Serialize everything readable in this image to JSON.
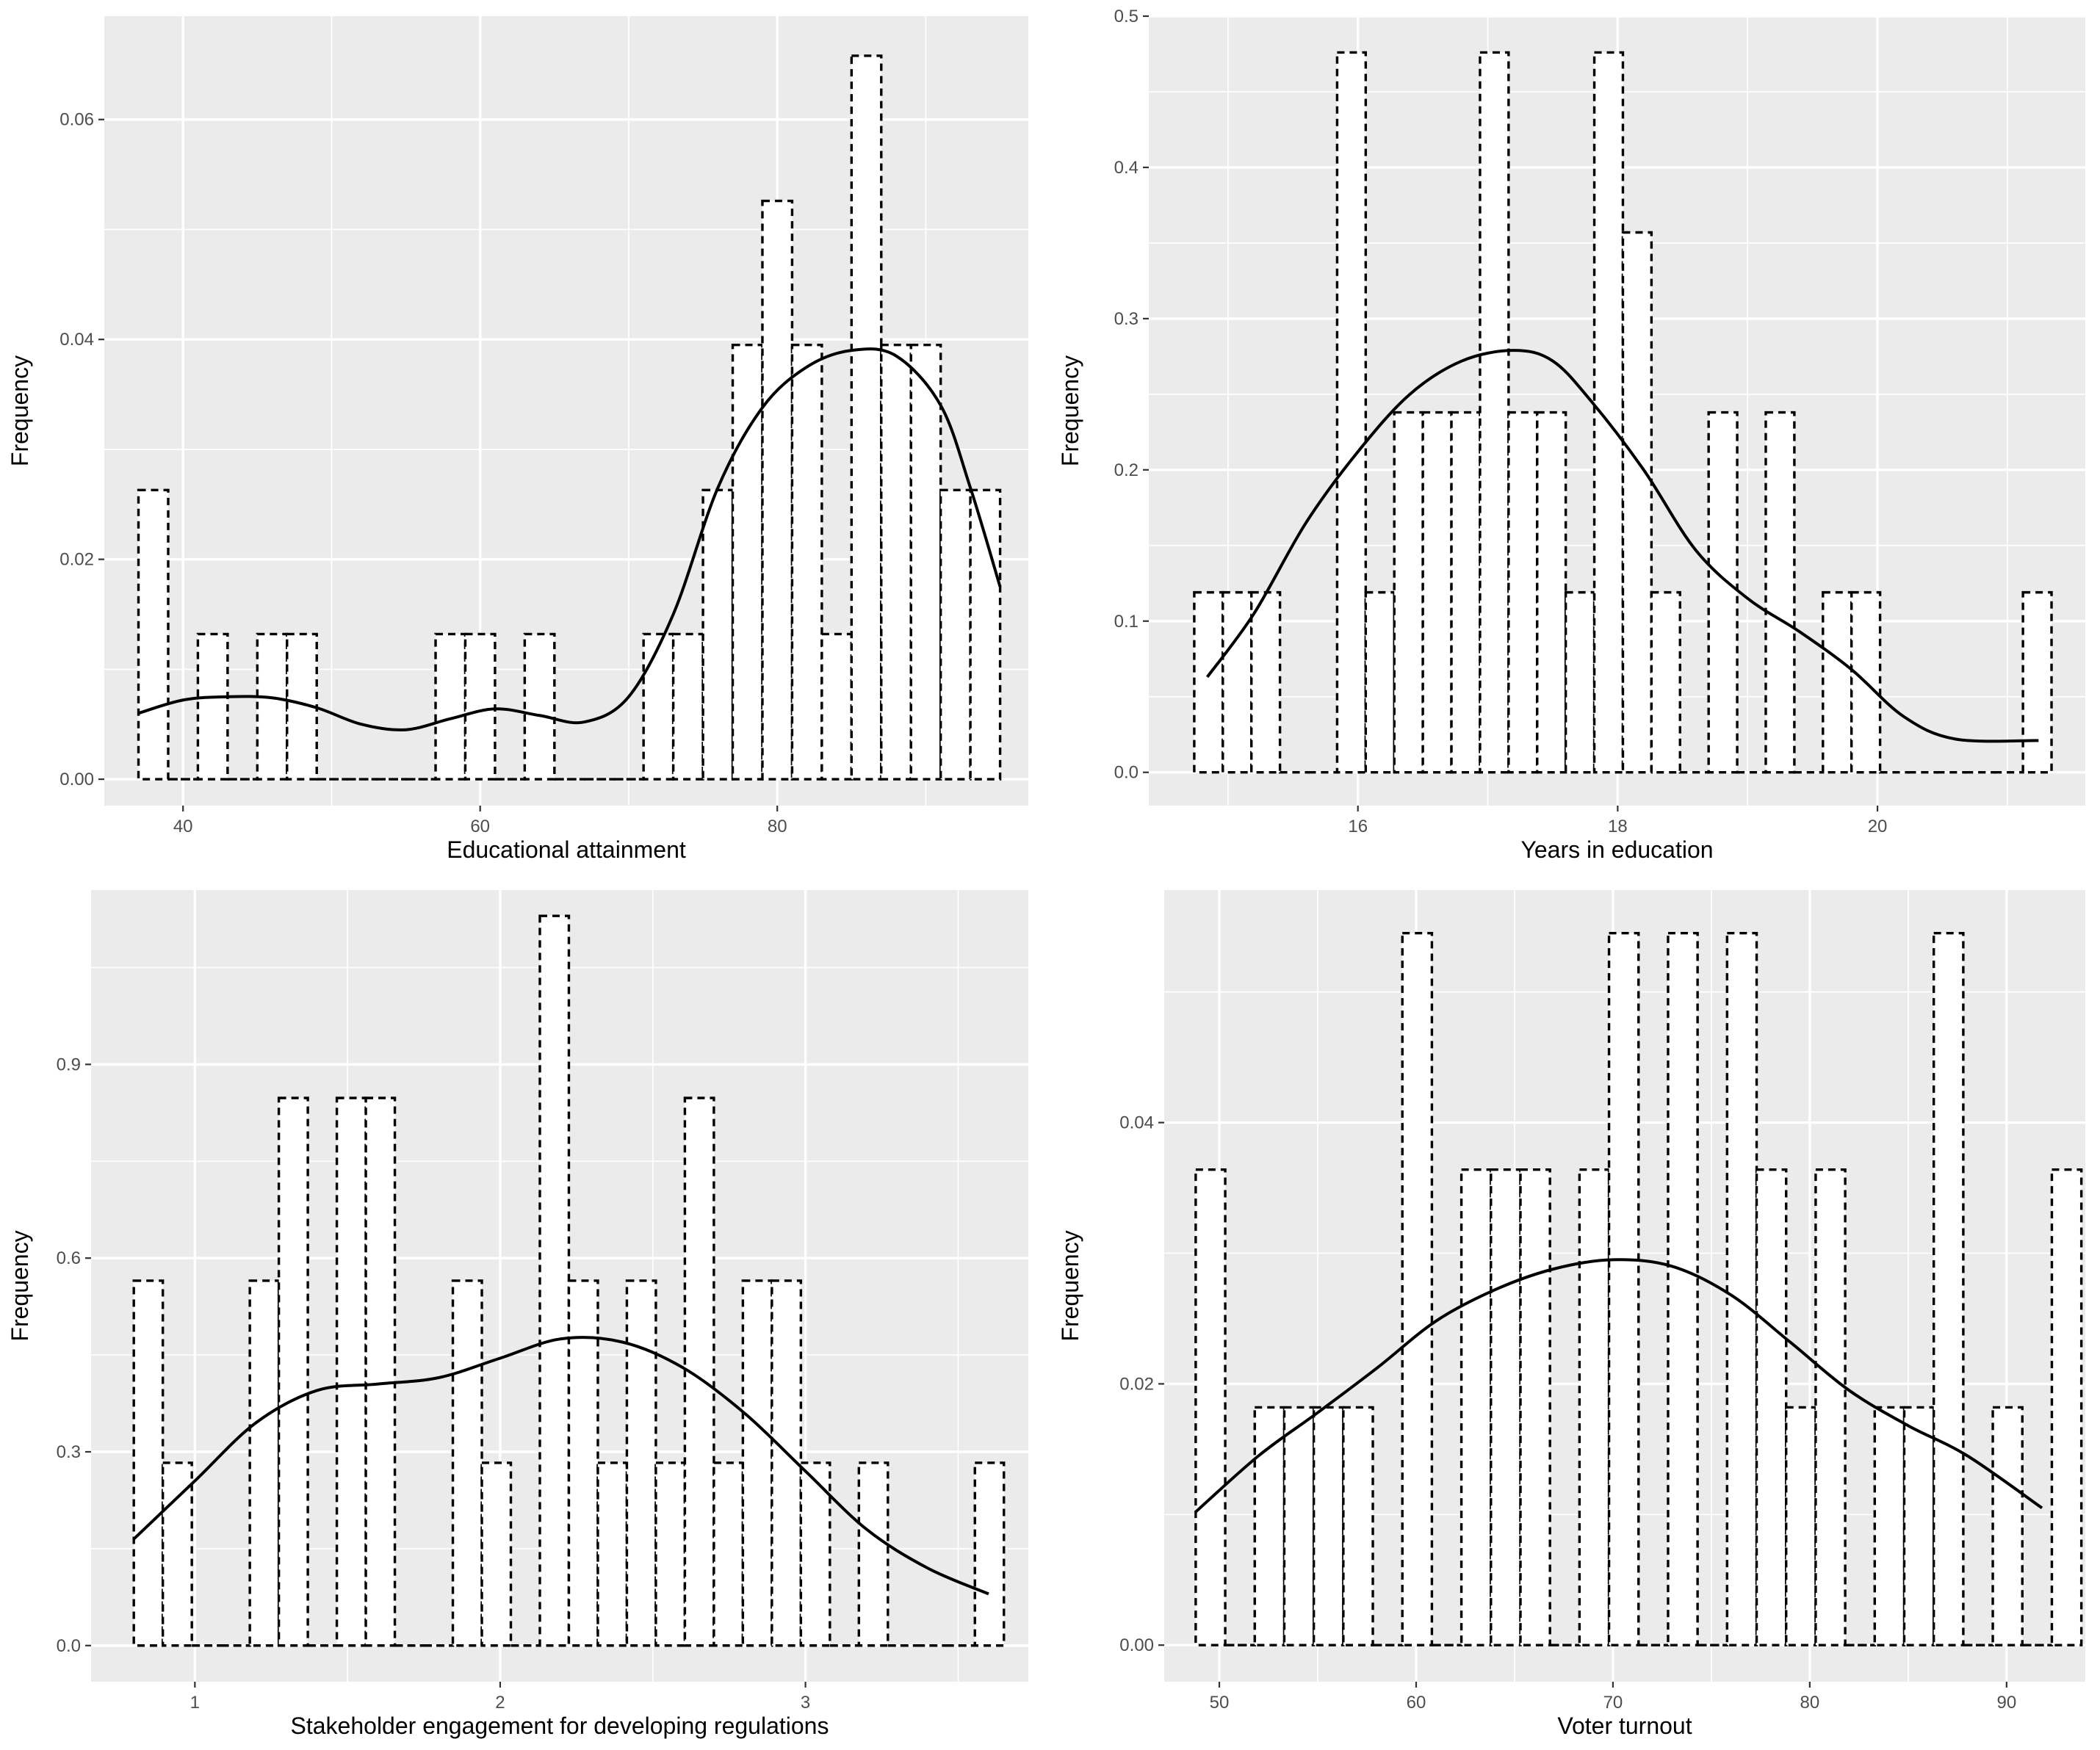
{
  "colors": {
    "panel_background": "#ebebeb",
    "grid": "#ffffff",
    "bar_fill": "#ffffff",
    "outline": "#000000",
    "tick_text": "#4d4d4d"
  },
  "chart_data": [
    {
      "type": "bar",
      "title": "",
      "xlabel": "Educational attainment",
      "ylabel": "Frequency",
      "xlim": [
        34.7,
        96.9
      ],
      "ylim": [
        -0.0024,
        0.0694
      ],
      "xticks": [
        "40",
        "60",
        "80"
      ],
      "yticks": [
        "0.00",
        "0.02",
        "0.04",
        "0.06"
      ],
      "bins": [
        {
          "x0": 37.0,
          "x1": 39.0,
          "value": 0.0263
        },
        {
          "x0": 39.0,
          "x1": 41.0,
          "value": 0.0
        },
        {
          "x0": 41.0,
          "x1": 43.0,
          "value": 0.0132
        },
        {
          "x0": 43.0,
          "x1": 45.0,
          "value": 0.0
        },
        {
          "x0": 45.0,
          "x1": 47.0,
          "value": 0.0132
        },
        {
          "x0": 47.0,
          "x1": 49.0,
          "value": 0.0132
        },
        {
          "x0": 49.0,
          "x1": 51.0,
          "value": 0.0
        },
        {
          "x0": 51.0,
          "x1": 53.0,
          "value": 0.0
        },
        {
          "x0": 53.0,
          "x1": 55.0,
          "value": 0.0
        },
        {
          "x0": 55.0,
          "x1": 57.0,
          "value": 0.0
        },
        {
          "x0": 57.0,
          "x1": 59.0,
          "value": 0.0132
        },
        {
          "x0": 59.0,
          "x1": 61.0,
          "value": 0.0132
        },
        {
          "x0": 61.0,
          "x1": 63.0,
          "value": 0.0
        },
        {
          "x0": 63.0,
          "x1": 65.0,
          "value": 0.0132
        },
        {
          "x0": 65.0,
          "x1": 67.0,
          "value": 0.0
        },
        {
          "x0": 67.0,
          "x1": 69.0,
          "value": 0.0
        },
        {
          "x0": 69.0,
          "x1": 71.0,
          "value": 0.0
        },
        {
          "x0": 71.0,
          "x1": 73.0,
          "value": 0.0132
        },
        {
          "x0": 73.0,
          "x1": 75.0,
          "value": 0.0132
        },
        {
          "x0": 75.0,
          "x1": 77.0,
          "value": 0.0263
        },
        {
          "x0": 77.0,
          "x1": 79.0,
          "value": 0.0395
        },
        {
          "x0": 79.0,
          "x1": 81.0,
          "value": 0.0526
        },
        {
          "x0": 81.0,
          "x1": 83.0,
          "value": 0.0395
        },
        {
          "x0": 83.0,
          "x1": 85.0,
          "value": 0.0132
        },
        {
          "x0": 85.0,
          "x1": 87.0,
          "value": 0.0658
        },
        {
          "x0": 87.0,
          "x1": 89.0,
          "value": 0.0395
        },
        {
          "x0": 89.0,
          "x1": 91.0,
          "value": 0.0395
        },
        {
          "x0": 91.0,
          "x1": 93.0,
          "value": 0.0263
        },
        {
          "x0": 93.0,
          "x1": 95.0,
          "value": 0.0263
        }
      ],
      "density": {
        "x": [
          37.0,
          40,
          43,
          46,
          49,
          52,
          55,
          58,
          61,
          64,
          67,
          70,
          73,
          76,
          79,
          82,
          85,
          88,
          91,
          93,
          95
        ],
        "y": [
          0.006,
          0.0072,
          0.0075,
          0.0074,
          0.0065,
          0.005,
          0.0045,
          0.0055,
          0.0064,
          0.0058,
          0.0052,
          0.0075,
          0.015,
          0.0265,
          0.0338,
          0.0375,
          0.039,
          0.0385,
          0.034,
          0.0265,
          0.0175
        ]
      }
    },
    {
      "type": "bar",
      "title": "",
      "xlabel": "Years in education",
      "ylabel": "Frequency",
      "xlim": [
        14.39,
        21.6
      ],
      "ylim": [
        -0.022,
        0.5
      ],
      "xticks": [
        "16",
        "18",
        "20"
      ],
      "yticks": [
        "0.0",
        "0.1",
        "0.2",
        "0.3",
        "0.4",
        "0.5"
      ],
      "bins": [
        {
          "x0": 14.74,
          "x1": 14.96,
          "value": 0.119
        },
        {
          "x0": 14.96,
          "x1": 15.18,
          "value": 0.119
        },
        {
          "x0": 15.18,
          "x1": 15.4,
          "value": 0.119
        },
        {
          "x0": 15.4,
          "x1": 15.62,
          "value": 0.0
        },
        {
          "x0": 15.62,
          "x1": 15.84,
          "value": 0.0
        },
        {
          "x0": 15.84,
          "x1": 16.06,
          "value": 0.476
        },
        {
          "x0": 16.06,
          "x1": 16.28,
          "value": 0.119
        },
        {
          "x0": 16.28,
          "x1": 16.5,
          "value": 0.238
        },
        {
          "x0": 16.5,
          "x1": 16.72,
          "value": 0.238
        },
        {
          "x0": 16.72,
          "x1": 16.94,
          "value": 0.238
        },
        {
          "x0": 16.94,
          "x1": 17.16,
          "value": 0.476
        },
        {
          "x0": 17.16,
          "x1": 17.38,
          "value": 0.238
        },
        {
          "x0": 17.38,
          "x1": 17.6,
          "value": 0.238
        },
        {
          "x0": 17.6,
          "x1": 17.82,
          "value": 0.119
        },
        {
          "x0": 17.82,
          "x1": 18.04,
          "value": 0.476
        },
        {
          "x0": 18.04,
          "x1": 18.26,
          "value": 0.357
        },
        {
          "x0": 18.26,
          "x1": 18.48,
          "value": 0.119
        },
        {
          "x0": 18.48,
          "x1": 18.7,
          "value": 0.0
        },
        {
          "x0": 18.7,
          "x1": 18.92,
          "value": 0.238
        },
        {
          "x0": 18.92,
          "x1": 19.14,
          "value": 0.0
        },
        {
          "x0": 19.14,
          "x1": 19.36,
          "value": 0.238
        },
        {
          "x0": 19.36,
          "x1": 19.58,
          "value": 0.0
        },
        {
          "x0": 19.58,
          "x1": 19.8,
          "value": 0.119
        },
        {
          "x0": 19.8,
          "x1": 20.02,
          "value": 0.119
        },
        {
          "x0": 20.02,
          "x1": 20.24,
          "value": 0.0
        },
        {
          "x0": 20.24,
          "x1": 20.46,
          "value": 0.0
        },
        {
          "x0": 20.46,
          "x1": 20.68,
          "value": 0.0
        },
        {
          "x0": 20.68,
          "x1": 20.9,
          "value": 0.0
        },
        {
          "x0": 20.9,
          "x1": 21.12,
          "value": 0.0
        },
        {
          "x0": 21.12,
          "x1": 21.34,
          "value": 0.119
        }
      ],
      "density": {
        "x": [
          14.84,
          15.2,
          15.6,
          16.0,
          16.4,
          16.8,
          17.2,
          17.5,
          17.8,
          18.2,
          18.6,
          19.0,
          19.4,
          19.8,
          20.2,
          20.6,
          21.24
        ],
        "y": [
          0.063,
          0.105,
          0.165,
          0.212,
          0.25,
          0.272,
          0.279,
          0.272,
          0.245,
          0.2,
          0.147,
          0.115,
          0.093,
          0.068,
          0.037,
          0.022,
          0.021
        ]
      }
    },
    {
      "type": "bar",
      "title": "",
      "xlabel": "Stakeholder engagement for developing regulations",
      "ylabel": "Frequency",
      "xlim": [
        0.66,
        3.73
      ],
      "ylim": [
        -0.056,
        1.17
      ],
      "xticks": [
        "1",
        "2",
        "3"
      ],
      "yticks": [
        "0.0",
        "0.3",
        "0.6",
        "0.9"
      ],
      "bins": [
        {
          "x0": 0.8,
          "x1": 0.895,
          "value": 0.565
        },
        {
          "x0": 0.895,
          "x1": 0.99,
          "value": 0.283
        },
        {
          "x0": 0.99,
          "x1": 1.085,
          "value": 0.0
        },
        {
          "x0": 1.085,
          "x1": 1.18,
          "value": 0.0
        },
        {
          "x0": 1.18,
          "x1": 1.275,
          "value": 0.565
        },
        {
          "x0": 1.275,
          "x1": 1.37,
          "value": 0.848
        },
        {
          "x0": 1.37,
          "x1": 1.465,
          "value": 0.0
        },
        {
          "x0": 1.465,
          "x1": 1.56,
          "value": 0.848
        },
        {
          "x0": 1.56,
          "x1": 1.655,
          "value": 0.848
        },
        {
          "x0": 1.655,
          "x1": 1.75,
          "value": 0.0
        },
        {
          "x0": 1.75,
          "x1": 1.845,
          "value": 0.0
        },
        {
          "x0": 1.845,
          "x1": 1.94,
          "value": 0.565
        },
        {
          "x0": 1.94,
          "x1": 2.035,
          "value": 0.283
        },
        {
          "x0": 2.035,
          "x1": 2.13,
          "value": 0.0
        },
        {
          "x0": 2.13,
          "x1": 2.225,
          "value": 1.13
        },
        {
          "x0": 2.225,
          "x1": 2.32,
          "value": 0.565
        },
        {
          "x0": 2.32,
          "x1": 2.415,
          "value": 0.283
        },
        {
          "x0": 2.415,
          "x1": 2.51,
          "value": 0.565
        },
        {
          "x0": 2.51,
          "x1": 2.605,
          "value": 0.283
        },
        {
          "x0": 2.605,
          "x1": 2.7,
          "value": 0.848
        },
        {
          "x0": 2.7,
          "x1": 2.795,
          "value": 0.283
        },
        {
          "x0": 2.795,
          "x1": 2.89,
          "value": 0.565
        },
        {
          "x0": 2.89,
          "x1": 2.985,
          "value": 0.565
        },
        {
          "x0": 2.985,
          "x1": 3.08,
          "value": 0.283
        },
        {
          "x0": 3.08,
          "x1": 3.175,
          "value": 0.0
        },
        {
          "x0": 3.175,
          "x1": 3.27,
          "value": 0.283
        },
        {
          "x0": 3.27,
          "x1": 3.365,
          "value": 0.0
        },
        {
          "x0": 3.365,
          "x1": 3.46,
          "value": 0.0
        },
        {
          "x0": 3.46,
          "x1": 3.555,
          "value": 0.0
        },
        {
          "x0": 3.555,
          "x1": 3.65,
          "value": 0.283
        }
      ],
      "density": {
        "x": [
          0.8,
          1.0,
          1.2,
          1.4,
          1.6,
          1.8,
          2.0,
          2.2,
          2.4,
          2.6,
          2.8,
          3.0,
          3.2,
          3.4,
          3.6
        ],
        "y": [
          0.165,
          0.255,
          0.345,
          0.395,
          0.405,
          0.415,
          0.445,
          0.475,
          0.47,
          0.43,
          0.36,
          0.27,
          0.18,
          0.12,
          0.08
        ]
      }
    },
    {
      "type": "bar",
      "title": "",
      "xlabel": "Voter turnout",
      "ylabel": "Frequency",
      "xlim": [
        47.2,
        94.0
      ],
      "ylim": [
        -0.0028,
        0.0578
      ],
      "xticks": [
        "50",
        "60",
        "70",
        "80",
        "90"
      ],
      "yticks": [
        "0.00",
        "0.02",
        "0.04"
      ],
      "bins": [
        {
          "x0": 48.8,
          "x1": 50.3,
          "value": 0.0364
        },
        {
          "x0": 50.3,
          "x1": 51.8,
          "value": 0.0
        },
        {
          "x0": 51.8,
          "x1": 53.3,
          "value": 0.0182
        },
        {
          "x0": 53.3,
          "x1": 54.8,
          "value": 0.0182
        },
        {
          "x0": 54.8,
          "x1": 56.3,
          "value": 0.0182
        },
        {
          "x0": 56.3,
          "x1": 57.8,
          "value": 0.0182
        },
        {
          "x0": 57.8,
          "x1": 59.3,
          "value": 0.0
        },
        {
          "x0": 59.3,
          "x1": 60.8,
          "value": 0.0545
        },
        {
          "x0": 60.8,
          "x1": 62.3,
          "value": 0.0
        },
        {
          "x0": 62.3,
          "x1": 63.8,
          "value": 0.0364
        },
        {
          "x0": 63.8,
          "x1": 65.3,
          "value": 0.0364
        },
        {
          "x0": 65.3,
          "x1": 66.8,
          "value": 0.0364
        },
        {
          "x0": 66.8,
          "x1": 68.3,
          "value": 0.0
        },
        {
          "x0": 68.3,
          "x1": 69.8,
          "value": 0.0364
        },
        {
          "x0": 69.8,
          "x1": 71.3,
          "value": 0.0545
        },
        {
          "x0": 71.3,
          "x1": 72.8,
          "value": 0.0
        },
        {
          "x0": 72.8,
          "x1": 74.3,
          "value": 0.0545
        },
        {
          "x0": 74.3,
          "x1": 75.8,
          "value": 0.0
        },
        {
          "x0": 75.8,
          "x1": 77.3,
          "value": 0.0545
        },
        {
          "x0": 77.3,
          "x1": 78.8,
          "value": 0.0364
        },
        {
          "x0": 78.8,
          "x1": 80.3,
          "value": 0.0182
        },
        {
          "x0": 80.3,
          "x1": 81.8,
          "value": 0.0364
        },
        {
          "x0": 81.8,
          "x1": 83.3,
          "value": 0.0
        },
        {
          "x0": 83.3,
          "x1": 84.8,
          "value": 0.0182
        },
        {
          "x0": 84.8,
          "x1": 86.3,
          "value": 0.0182
        },
        {
          "x0": 86.3,
          "x1": 87.8,
          "value": 0.0545
        },
        {
          "x0": 87.8,
          "x1": 89.3,
          "value": 0.0
        },
        {
          "x0": 89.3,
          "x1": 90.8,
          "value": 0.0182
        },
        {
          "x0": 90.8,
          "x1": 92.3,
          "value": 0.0
        },
        {
          "x0": 92.3,
          "x1": 93.8,
          "value": 0.0364
        }
      ],
      "density": {
        "x": [
          48.8,
          52,
          55,
          58,
          61,
          64,
          67,
          70,
          73,
          76,
          79,
          82,
          85,
          88,
          91.8
        ],
        "y": [
          0.0102,
          0.0145,
          0.0178,
          0.0212,
          0.0248,
          0.0272,
          0.0288,
          0.0295,
          0.029,
          0.0268,
          0.0232,
          0.0195,
          0.0168,
          0.0145,
          0.0105
        ]
      }
    }
  ]
}
